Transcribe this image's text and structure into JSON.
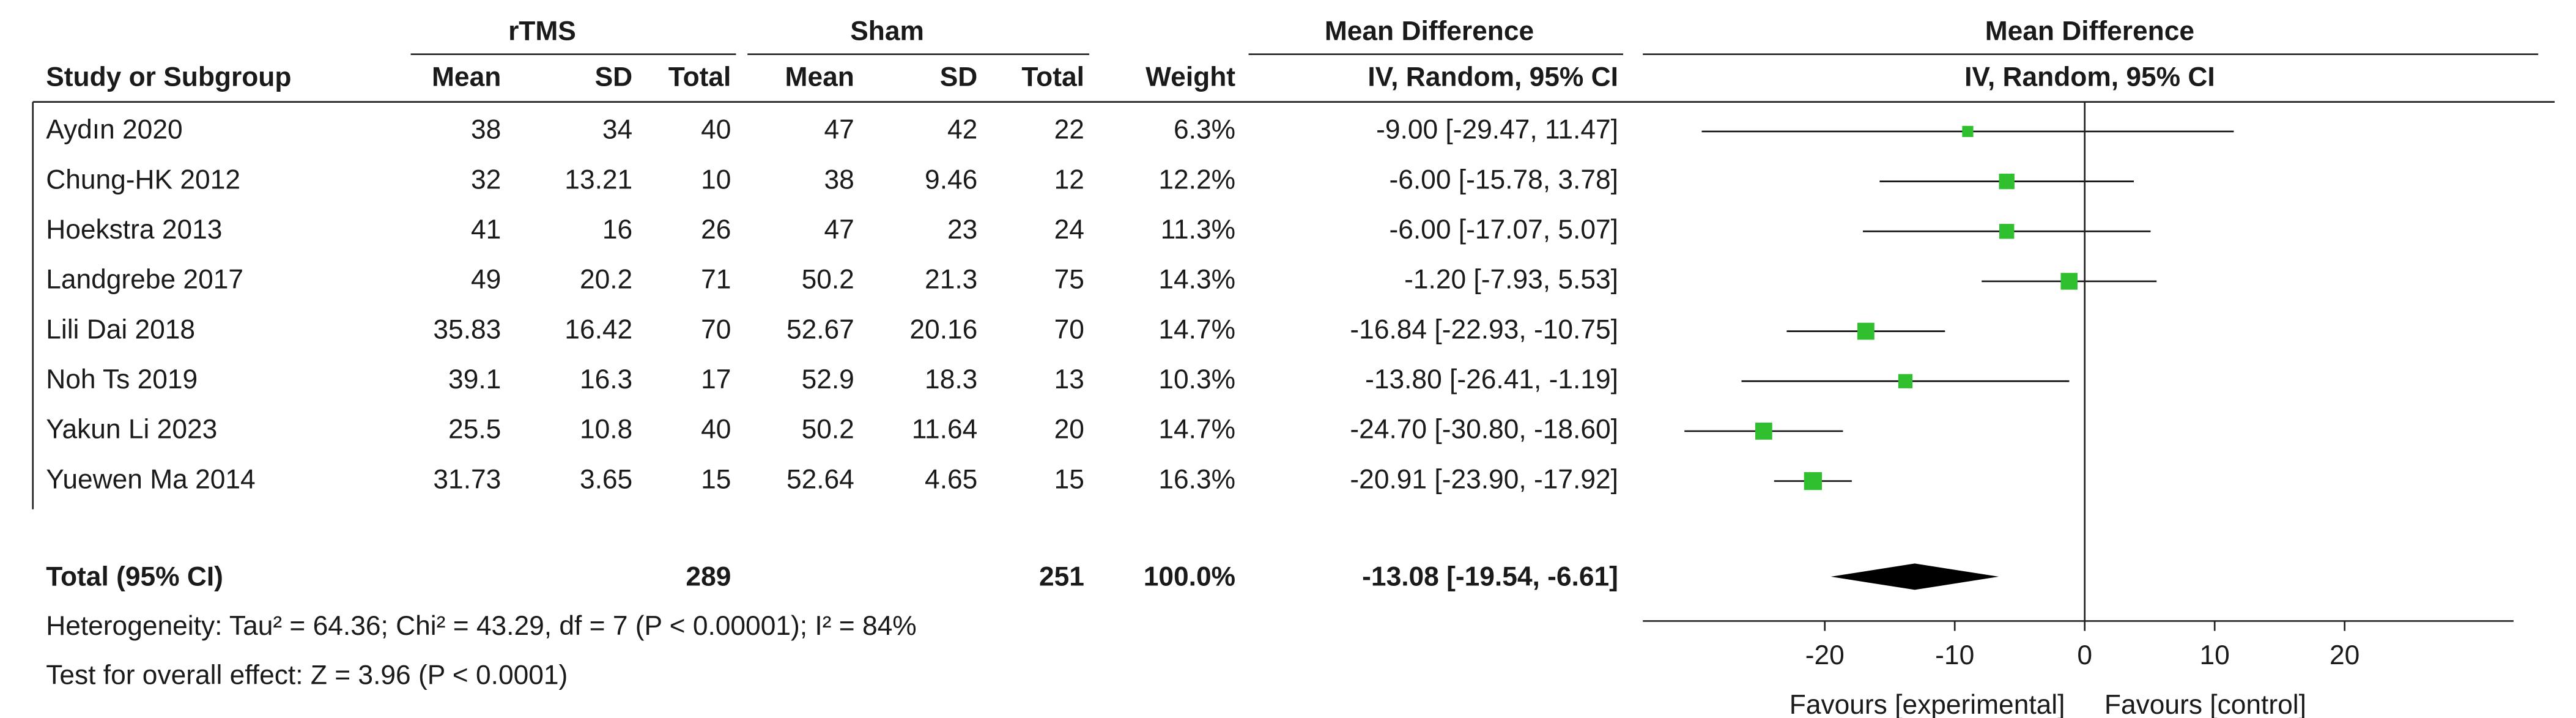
{
  "chart_data": {
    "type": "forest",
    "group_headers": {
      "experimental": "rTMS",
      "control": "Sham",
      "table_effect": "Mean Difference",
      "plot_effect": "Mean Difference"
    },
    "columns": {
      "study": "Study or Subgroup",
      "e_mean": "Mean",
      "e_sd": "SD",
      "e_total": "Total",
      "c_mean": "Mean",
      "c_sd": "SD",
      "c_total": "Total",
      "weight": "Weight",
      "ci": "IV, Random, 95% CI"
    },
    "plot_subheader": "IV, Random, 95% CI",
    "studies": [
      {
        "name": "Aydın 2020",
        "e_mean": 38,
        "e_sd": 34,
        "e_total": 40,
        "c_mean": 47,
        "c_sd": 42,
        "c_total": 22,
        "weight": {
          "value": 6.3,
          "label": "6.3%"
        },
        "md": -9.0,
        "lo": -29.47,
        "hi": 11.47,
        "ci_label": "-9.00 [-29.47, 11.47]"
      },
      {
        "name": "Chung-HK 2012",
        "e_mean": 32,
        "e_sd": 13.21,
        "e_total": 10,
        "c_mean": 38,
        "c_sd": 9.46,
        "c_total": 12,
        "weight": {
          "value": 12.2,
          "label": "12.2%"
        },
        "md": -6.0,
        "lo": -15.78,
        "hi": 3.78,
        "ci_label": "-6.00 [-15.78, 3.78]"
      },
      {
        "name": "Hoekstra 2013",
        "e_mean": 41,
        "e_sd": 16,
        "e_total": 26,
        "c_mean": 47,
        "c_sd": 23,
        "c_total": 24,
        "weight": {
          "value": 11.3,
          "label": "11.3%"
        },
        "md": -6.0,
        "lo": -17.07,
        "hi": 5.07,
        "ci_label": "-6.00 [-17.07, 5.07]"
      },
      {
        "name": "Landgrebe 2017",
        "e_mean": 49,
        "e_sd": 20.2,
        "e_total": 71,
        "c_mean": 50.2,
        "c_sd": 21.3,
        "c_total": 75,
        "weight": {
          "value": 14.3,
          "label": "14.3%"
        },
        "md": -1.2,
        "lo": -7.93,
        "hi": 5.53,
        "ci_label": "-1.20 [-7.93, 5.53]"
      },
      {
        "name": "Lili Dai 2018",
        "e_mean": 35.83,
        "e_sd": 16.42,
        "e_total": 70,
        "c_mean": 52.67,
        "c_sd": 20.16,
        "c_total": 70,
        "weight": {
          "value": 14.7,
          "label": "14.7%"
        },
        "md": -16.84,
        "lo": -22.93,
        "hi": -10.75,
        "ci_label": "-16.84 [-22.93, -10.75]"
      },
      {
        "name": "Noh Ts 2019",
        "e_mean": 39.1,
        "e_sd": 16.3,
        "e_total": 17,
        "c_mean": 52.9,
        "c_sd": 18.3,
        "c_total": 13,
        "weight": {
          "value": 10.3,
          "label": "10.3%"
        },
        "md": -13.8,
        "lo": -26.41,
        "hi": -1.19,
        "ci_label": "-13.80 [-26.41, -1.19]"
      },
      {
        "name": "Yakun Li 2023",
        "e_mean": 25.5,
        "e_sd": 10.8,
        "e_total": 40,
        "c_mean": 50.2,
        "c_sd": 11.64,
        "c_total": 20,
        "weight": {
          "value": 14.7,
          "label": "14.7%"
        },
        "md": -24.7,
        "lo": -30.8,
        "hi": -18.6,
        "ci_label": "-24.70 [-30.80, -18.60]"
      },
      {
        "name": "Yuewen Ma 2014",
        "e_mean": 31.73,
        "e_sd": 3.65,
        "e_total": 15,
        "c_mean": 52.64,
        "c_sd": 4.65,
        "c_total": 15,
        "weight": {
          "value": 16.3,
          "label": "16.3%"
        },
        "md": -20.91,
        "lo": -23.9,
        "hi": -17.92,
        "ci_label": "-20.91 [-23.90, -17.92]"
      }
    ],
    "total": {
      "name": "Total (95% CI)",
      "e_total": 289,
      "c_total": 251,
      "weight": {
        "value": 100.0,
        "label": "100.0%"
      },
      "md": -13.08,
      "lo": -19.54,
      "hi": -6.61,
      "ci_label": "-13.08 [-19.54, -6.61]"
    },
    "heterogeneity": "Heterogeneity: Tau² = 64.36; Chi² = 43.29, df = 7 (P < 0.00001); I² = 84%",
    "overall_effect": "Test for overall effect: Z = 3.96 (P < 0.0001)",
    "xlim": [
      -34,
      33
    ],
    "xticks": [
      -20,
      -10,
      0,
      10,
      20
    ],
    "favours_left": "Favours [experimental]",
    "favours_right": "Favours [control]",
    "marker_color": "#2fbf2f",
    "diamond_color": "#000000"
  }
}
